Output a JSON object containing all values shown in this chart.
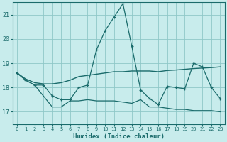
{
  "xlabel": "Humidex (Indice chaleur)",
  "bg_color": "#c8ecec",
  "grid_color": "#8fc8c8",
  "line_color": "#1a6b6b",
  "xlim": [
    -0.5,
    23.5
  ],
  "ylim": [
    16.5,
    21.5
  ],
  "xticks": [
    0,
    1,
    2,
    3,
    4,
    5,
    6,
    7,
    8,
    9,
    10,
    11,
    12,
    13,
    14,
    15,
    16,
    17,
    18,
    19,
    20,
    21,
    22,
    23
  ],
  "yticks": [
    17,
    18,
    19,
    20,
    21
  ],
  "line1_x": [
    0,
    1,
    2,
    3,
    4,
    5,
    6,
    7,
    8,
    9,
    10,
    11,
    12,
    13,
    14,
    15,
    16,
    17,
    18,
    19,
    20,
    21,
    22,
    23
  ],
  "line1_y": [
    18.6,
    18.3,
    18.1,
    17.65,
    17.2,
    17.2,
    17.45,
    17.45,
    17.5,
    17.45,
    17.45,
    17.45,
    17.4,
    17.35,
    17.5,
    17.2,
    17.2,
    17.15,
    17.1,
    17.1,
    17.05,
    17.05,
    17.05,
    17.0
  ],
  "line2_x": [
    0,
    1,
    2,
    3,
    4,
    5,
    6,
    7,
    8,
    9,
    10,
    11,
    12,
    13,
    14,
    15,
    16,
    17,
    18,
    19,
    20,
    21,
    22,
    23
  ],
  "line2_y": [
    18.6,
    18.3,
    18.1,
    18.1,
    17.65,
    17.5,
    17.5,
    18.0,
    18.1,
    19.55,
    20.35,
    20.9,
    21.45,
    19.7,
    17.9,
    17.55,
    17.3,
    18.05,
    18.0,
    17.95,
    19.0,
    18.85,
    18.0,
    17.55
  ],
  "line3_x": [
    0,
    1,
    2,
    3,
    4,
    5,
    6,
    7,
    8,
    9,
    10,
    11,
    12,
    13,
    14,
    15,
    16,
    17,
    18,
    19,
    20,
    21,
    22,
    23
  ],
  "line3_y": [
    18.6,
    18.35,
    18.2,
    18.15,
    18.15,
    18.2,
    18.3,
    18.45,
    18.5,
    18.55,
    18.6,
    18.65,
    18.65,
    18.68,
    18.68,
    18.68,
    18.65,
    18.7,
    18.72,
    18.75,
    18.78,
    18.8,
    18.82,
    18.85
  ]
}
